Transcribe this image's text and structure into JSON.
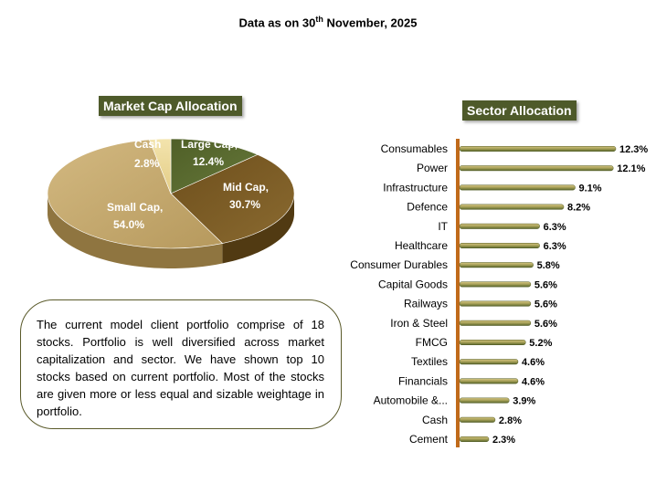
{
  "header": {
    "text_prefix": "Data as on 30",
    "text_sup": "th",
    "text_suffix": " November, 2025"
  },
  "market_cap": {
    "title": "Market Cap Allocation",
    "labels": {
      "large_cap": "Large Cap,",
      "large_cap_value": "12.4%",
      "mid_cap": "Mid Cap,",
      "mid_cap_value": "30.7%",
      "small_cap": "Small Cap,",
      "small_cap_value": "54.0%",
      "cash": "Cash",
      "cash_value": "2.8%"
    }
  },
  "sector": {
    "title": "Sector Allocation"
  },
  "summary": {
    "text": "The current model client portfolio comprise of 18 stocks. Portfolio is well diversified across market capitalization and sector. We have shown top 10 stocks based on current portfolio. Most of the stocks are given more or less equal and sizable weightage in portfolio."
  },
  "chart_data": [
    {
      "type": "pie",
      "title": "Market Cap Allocation",
      "categories": [
        "Large Cap",
        "Mid Cap",
        "Small Cap",
        "Cash"
      ],
      "values": [
        12.4,
        30.7,
        54.0,
        2.8
      ],
      "colors": [
        "#5b6b2f",
        "#7a5a22",
        "#c4a76e",
        "#efdca0"
      ]
    },
    {
      "type": "bar",
      "orientation": "horizontal",
      "title": "Sector Allocation",
      "categories": [
        "Consumables",
        "Power",
        "Infrastructure",
        "Defence",
        "IT",
        "Healthcare",
        "Consumer Durables",
        "Capital Goods",
        "Railways",
        "Iron & Steel",
        "FMCG",
        "Textiles",
        "Financials",
        "Automobile &...",
        "Cash",
        "Cement"
      ],
      "values": [
        12.3,
        12.1,
        9.1,
        8.2,
        6.3,
        6.3,
        5.8,
        5.6,
        5.6,
        5.6,
        5.2,
        4.6,
        4.6,
        3.9,
        2.8,
        2.3
      ],
      "value_labels": [
        "12.3%",
        "12.1%",
        "9.1%",
        "8.2%",
        "6.3%",
        "6.3%",
        "5.8%",
        "5.6%",
        "5.6%",
        "5.6%",
        "5.2%",
        "4.6%",
        "4.6%",
        "3.9%",
        "2.8%",
        "2.3%"
      ],
      "xlim": [
        0,
        12.3
      ],
      "colors": {
        "bar_light": "#d6c27e",
        "bar_dark": "#5c6a2a",
        "axis": "#c06a1a"
      }
    }
  ]
}
